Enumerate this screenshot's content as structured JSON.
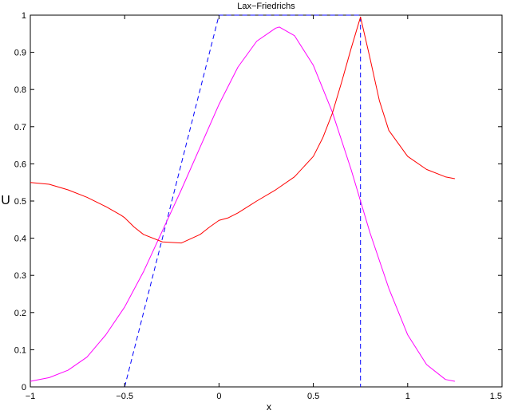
{
  "chart_data": {
    "type": "line",
    "title": "Lax−Friedrichs",
    "xlabel": "x",
    "ylabel": "U",
    "xlim": [
      -1,
      1.5
    ],
    "ylim": [
      0,
      1
    ],
    "xticks": [
      "−1",
      "−0.5",
      "0",
      "0.5",
      "1",
      "1.5"
    ],
    "yticks": [
      "0",
      "0.1",
      "0.2",
      "0.3",
      "0.4",
      "0.5",
      "0.6",
      "0.7",
      "0.8",
      "0.9",
      "1"
    ],
    "grid": false,
    "legend": "none",
    "series": [
      {
        "color": "#0000ff",
        "style": "dashed",
        "x": [
          -0.5,
          0.0,
          0.75,
          0.75
        ],
        "y": [
          0.0,
          1.0,
          1.0,
          0.0
        ]
      },
      {
        "color": "#ff00ff",
        "style": "solid",
        "x": [
          -1.0,
          -0.9,
          -0.8,
          -0.7,
          -0.6,
          -0.5,
          -0.4,
          -0.3,
          -0.2,
          -0.1,
          0.0,
          0.1,
          0.2,
          0.3,
          0.32,
          0.4,
          0.5,
          0.6,
          0.7,
          0.75,
          0.8,
          0.9,
          1.0,
          1.1,
          1.2,
          1.25
        ],
        "y": [
          0.015,
          0.025,
          0.045,
          0.08,
          0.14,
          0.215,
          0.31,
          0.42,
          0.53,
          0.645,
          0.76,
          0.86,
          0.93,
          0.965,
          0.968,
          0.945,
          0.865,
          0.74,
          0.585,
          0.5,
          0.415,
          0.265,
          0.14,
          0.06,
          0.02,
          0.015
        ]
      },
      {
        "color": "#ff0000",
        "style": "solid",
        "x": [
          -1.0,
          -0.9,
          -0.8,
          -0.7,
          -0.6,
          -0.52,
          -0.5,
          -0.45,
          -0.4,
          -0.3,
          -0.2,
          -0.1,
          -0.05,
          0.0,
          0.05,
          0.1,
          0.2,
          0.3,
          0.4,
          0.5,
          0.55,
          0.6,
          0.65,
          0.7,
          0.75,
          0.8,
          0.85,
          0.9,
          1.0,
          1.1,
          1.2,
          1.25
        ],
        "y": [
          0.55,
          0.545,
          0.53,
          0.51,
          0.485,
          0.462,
          0.455,
          0.43,
          0.41,
          0.39,
          0.387,
          0.41,
          0.43,
          0.448,
          0.455,
          0.468,
          0.5,
          0.53,
          0.565,
          0.62,
          0.67,
          0.735,
          0.82,
          0.91,
          0.995,
          0.885,
          0.77,
          0.69,
          0.62,
          0.585,
          0.565,
          0.56
        ]
      }
    ]
  }
}
